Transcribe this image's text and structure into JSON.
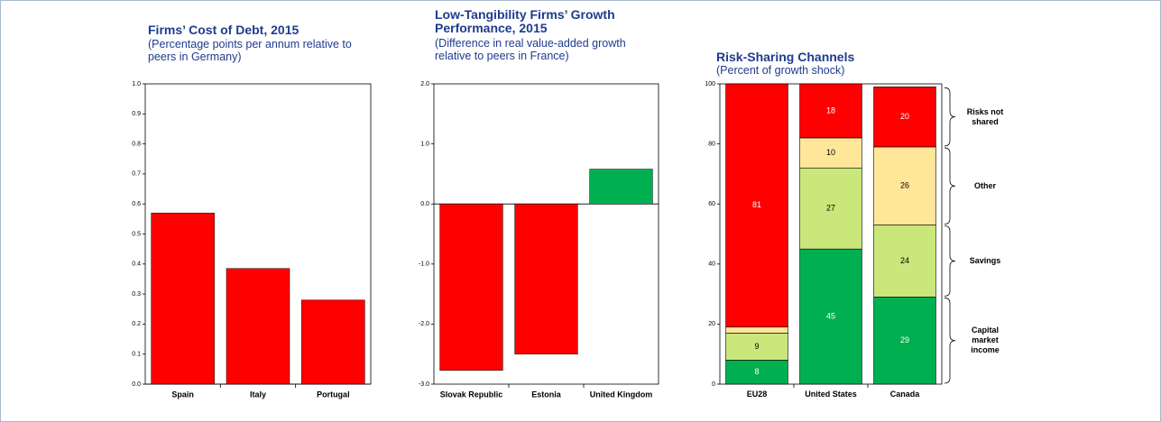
{
  "chart_data": [
    {
      "type": "bar",
      "title": "Firms’ Cost of Debt, 2015",
      "subtitle": "(Percentage points per annum relative to peers in Germany)",
      "categories": [
        "Spain",
        "Italy",
        "Portugal"
      ],
      "values": [
        0.57,
        0.385,
        0.28
      ],
      "colors": [
        "#ff0000",
        "#ff0000",
        "#ff0000"
      ],
      "ylim": [
        0,
        1
      ],
      "yticks": [
        {
          "value": 0,
          "label": "0.0"
        },
        0.1,
        0.2,
        0.3,
        0.4,
        0.5,
        0.6,
        0.7,
        0.8,
        0.9,
        {
          "value": 1,
          "label": "1.0"
        }
      ]
    },
    {
      "type": "bar",
      "title": "Low-Tangibility Firms’ Growth Performance, 2015",
      "subtitle": "(Difference in real value-added growth relative to peers in France)",
      "categories": [
        "Slovak Republic",
        "Estonia",
        "United Kingdom"
      ],
      "values": [
        -2.77,
        -2.5,
        0.58
      ],
      "colors": [
        "#ff0000",
        "#ff0000",
        "#00b050"
      ],
      "ylim": [
        -3,
        2
      ],
      "yticks": [
        {
          "value": -3,
          "label": "-3.0"
        },
        {
          "value": -2,
          "label": "-2.0"
        },
        {
          "value": -1,
          "label": "-1.0"
        },
        {
          "value": 0,
          "label": "0.0"
        },
        {
          "value": 1,
          "label": "1.0"
        },
        {
          "value": 2,
          "label": "2.0"
        }
      ]
    },
    {
      "type": "stacked_bar",
      "title": "Risk-Sharing Channels",
      "subtitle": "(Percent of growth shock)",
      "categories": [
        "EU28",
        "United States",
        "Canada"
      ],
      "series": [
        {
          "name": "Capital market income",
          "color": "#00b050",
          "values": [
            8,
            45,
            29
          ]
        },
        {
          "name": "Savings",
          "color": "#c9e77a",
          "values": [
            9,
            27,
            24
          ]
        },
        {
          "name": "Other",
          "color": "#ffe699",
          "values": [
            2,
            10,
            26
          ]
        },
        {
          "name": "Risks not shared",
          "color": "#ff0000",
          "values": [
            81,
            18,
            20
          ]
        }
      ],
      "ylim": [
        0,
        100
      ],
      "yticks": [
        0,
        20,
        40,
        60,
        80,
        100
      ]
    }
  ]
}
